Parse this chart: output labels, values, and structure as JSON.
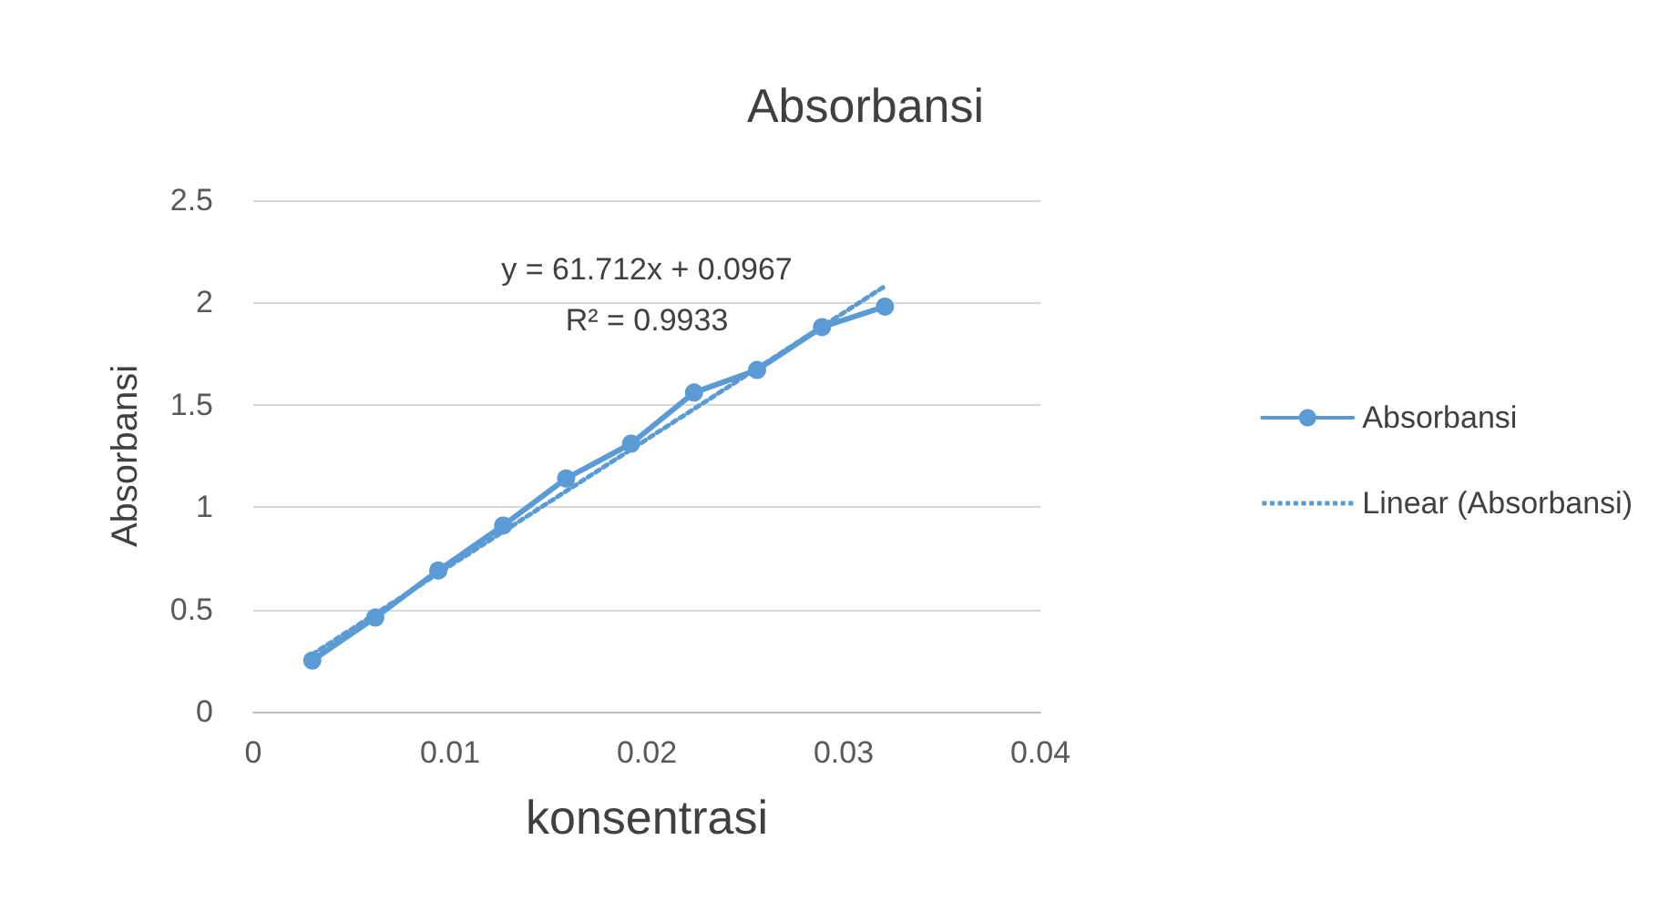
{
  "chart_data": {
    "type": "line",
    "title": "Absorbansi",
    "xlabel": "konsentrasi",
    "ylabel": "Absorbansi",
    "xlim": [
      0,
      0.04
    ],
    "xticks": [
      0,
      0.01,
      0.02,
      0.03,
      0.04
    ],
    "ylim": [
      0,
      2.5
    ],
    "yticks": [
      0,
      0.5,
      1,
      1.5,
      2,
      2.5
    ],
    "grid": "y",
    "legend": "right",
    "marker": "circle",
    "series": [
      {
        "name": "Absorbansi",
        "color": "#5b9bd5",
        "x": [
          0.003,
          0.0062,
          0.0094,
          0.0127,
          0.0159,
          0.0192,
          0.0224,
          0.0256,
          0.0289,
          0.0321
        ],
        "values": [
          0.25,
          0.46,
          0.69,
          0.91,
          1.14,
          1.31,
          1.56,
          1.67,
          1.88,
          1.98
        ]
      },
      {
        "name": "Linear (Absorbansi)",
        "color": "#5b9bd5",
        "type": "line",
        "marker": "none",
        "line_style": "dotted",
        "x": [
          0.003,
          0.0321
        ],
        "values": [
          0.28,
          2.08
        ]
      }
    ],
    "annotations": [
      "y = 61.712x + 0.0967",
      "R² = 0.9933"
    ]
  }
}
